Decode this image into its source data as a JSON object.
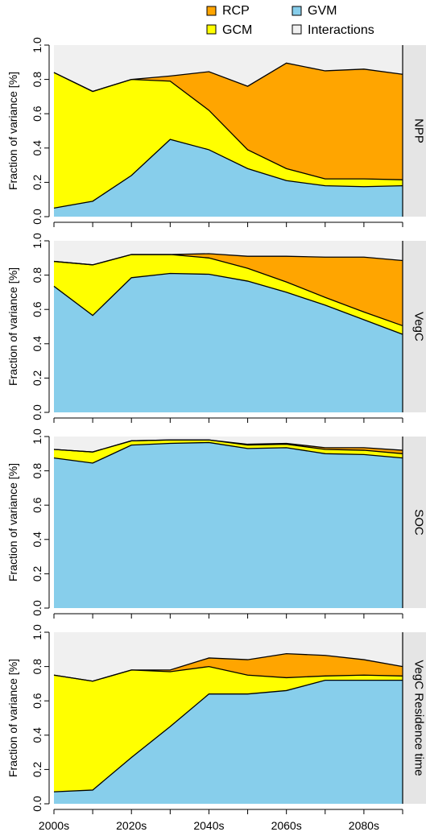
{
  "legend": {
    "items": [
      {
        "label": "RCP",
        "color": "#ffa500"
      },
      {
        "label": "GVM",
        "color": "#87ceeb"
      },
      {
        "label": "GCM",
        "color": "#ffff00"
      },
      {
        "label": "Interactions",
        "color": "#f0f0f0"
      }
    ]
  },
  "x_tick_labels": [
    "2000s",
    "2020s",
    "2040s",
    "2060s",
    "2080s"
  ],
  "y_tick_labels": [
    "0.0",
    "0.2",
    "0.4",
    "0.6",
    "0.8",
    "1.0"
  ],
  "colors": {
    "RCP": "#ffa500",
    "GVM": "#87ceeb",
    "GCM": "#ffff00",
    "Interactions": "#f0f0f0",
    "strip": "#e5e5e5"
  },
  "chart_data": [
    {
      "type": "area",
      "panel_label": "NPP",
      "ylabel": "Fraction of variance [%]",
      "x": [
        "2000s",
        "2010s",
        "2020s",
        "2030s",
        "2040s",
        "2050s",
        "2060s",
        "2070s",
        "2080s",
        "2090s"
      ],
      "ylim": [
        0,
        1
      ],
      "stacked_boundaries": {
        "GVM": [
          0.05,
          0.09,
          0.24,
          0.45,
          0.39,
          0.28,
          0.21,
          0.18,
          0.175,
          0.18
        ],
        "GVM+GCM": [
          0.84,
          0.73,
          0.8,
          0.79,
          0.62,
          0.39,
          0.28,
          0.22,
          0.22,
          0.215
        ],
        "GVM+GCM+RCP": [
          0.84,
          0.73,
          0.8,
          0.82,
          0.845,
          0.76,
          0.895,
          0.85,
          0.86,
          0.83
        ]
      },
      "series": [
        {
          "name": "GVM",
          "values": [
            0.05,
            0.09,
            0.24,
            0.45,
            0.39,
            0.28,
            0.21,
            0.18,
            0.175,
            0.18
          ]
        },
        {
          "name": "GCM",
          "values": [
            0.79,
            0.64,
            0.56,
            0.34,
            0.23,
            0.11,
            0.07,
            0.04,
            0.045,
            0.035
          ]
        },
        {
          "name": "RCP",
          "values": [
            0.0,
            0.0,
            0.0,
            0.03,
            0.225,
            0.37,
            0.615,
            0.63,
            0.64,
            0.615
          ]
        },
        {
          "name": "Interactions",
          "values": [
            0.16,
            0.27,
            0.2,
            0.18,
            0.155,
            0.24,
            0.105,
            0.15,
            0.14,
            0.17
          ]
        }
      ]
    },
    {
      "type": "area",
      "panel_label": "VegC",
      "ylabel": "Fraction of variance [%]",
      "x": [
        "2000s",
        "2010s",
        "2020s",
        "2030s",
        "2040s",
        "2050s",
        "2060s",
        "2070s",
        "2080s",
        "2090s"
      ],
      "ylim": [
        0,
        1
      ],
      "stacked_boundaries": {
        "GVM": [
          0.735,
          0.565,
          0.785,
          0.81,
          0.805,
          0.765,
          0.7,
          0.625,
          0.54,
          0.455
        ],
        "GVM+GCM": [
          0.88,
          0.86,
          0.92,
          0.92,
          0.9,
          0.84,
          0.76,
          0.67,
          0.585,
          0.505
        ],
        "GVM+GCM+RCP": [
          0.88,
          0.86,
          0.92,
          0.92,
          0.925,
          0.91,
          0.91,
          0.905,
          0.905,
          0.885
        ]
      },
      "series": [
        {
          "name": "GVM",
          "values": [
            0.735,
            0.565,
            0.785,
            0.81,
            0.805,
            0.765,
            0.7,
            0.625,
            0.54,
            0.455
          ]
        },
        {
          "name": "GCM",
          "values": [
            0.145,
            0.295,
            0.135,
            0.11,
            0.095,
            0.075,
            0.06,
            0.045,
            0.045,
            0.05
          ]
        },
        {
          "name": "RCP",
          "values": [
            0.0,
            0.0,
            0.0,
            0.0,
            0.025,
            0.07,
            0.15,
            0.235,
            0.32,
            0.38
          ]
        },
        {
          "name": "Interactions",
          "values": [
            0.12,
            0.14,
            0.08,
            0.08,
            0.075,
            0.09,
            0.09,
            0.095,
            0.095,
            0.115
          ]
        }
      ]
    },
    {
      "type": "area",
      "panel_label": "SOC",
      "ylabel": "Fraction of variance [%]",
      "x": [
        "2000s",
        "2010s",
        "2020s",
        "2030s",
        "2040s",
        "2050s",
        "2060s",
        "2070s",
        "2080s",
        "2090s"
      ],
      "ylim": [
        0,
        1
      ],
      "stacked_boundaries": {
        "GVM": [
          0.875,
          0.845,
          0.95,
          0.96,
          0.965,
          0.93,
          0.935,
          0.9,
          0.895,
          0.875
        ],
        "GVM+GCM": [
          0.925,
          0.91,
          0.975,
          0.98,
          0.98,
          0.95,
          0.955,
          0.925,
          0.92,
          0.9
        ],
        "GVM+GCM+RCP": [
          0.925,
          0.91,
          0.975,
          0.98,
          0.98,
          0.955,
          0.96,
          0.935,
          0.935,
          0.92
        ]
      },
      "series": [
        {
          "name": "GVM",
          "values": [
            0.875,
            0.845,
            0.95,
            0.96,
            0.965,
            0.93,
            0.935,
            0.9,
            0.895,
            0.875
          ]
        },
        {
          "name": "GCM",
          "values": [
            0.05,
            0.065,
            0.025,
            0.02,
            0.015,
            0.02,
            0.02,
            0.025,
            0.025,
            0.025
          ]
        },
        {
          "name": "RCP",
          "values": [
            0.0,
            0.0,
            0.0,
            0.0,
            0.0,
            0.005,
            0.005,
            0.01,
            0.015,
            0.02
          ]
        },
        {
          "name": "Interactions",
          "values": [
            0.075,
            0.09,
            0.025,
            0.02,
            0.02,
            0.045,
            0.04,
            0.065,
            0.065,
            0.08
          ]
        }
      ]
    },
    {
      "type": "area",
      "panel_label": "VegC Residence time",
      "ylabel": "Fraction of variance [%]",
      "x": [
        "2000s",
        "2010s",
        "2020s",
        "2030s",
        "2040s",
        "2050s",
        "2060s",
        "2070s",
        "2080s",
        "2090s"
      ],
      "ylim": [
        0,
        1
      ],
      "stacked_boundaries": {
        "GVM": [
          0.07,
          0.08,
          0.27,
          0.45,
          0.64,
          0.64,
          0.66,
          0.72,
          0.72,
          0.72
        ],
        "GVM+GCM": [
          0.75,
          0.715,
          0.78,
          0.77,
          0.8,
          0.75,
          0.735,
          0.745,
          0.75,
          0.745
        ],
        "GVM+GCM+RCP": [
          0.75,
          0.715,
          0.78,
          0.78,
          0.85,
          0.84,
          0.875,
          0.865,
          0.84,
          0.8
        ]
      },
      "series": [
        {
          "name": "GVM",
          "values": [
            0.07,
            0.08,
            0.27,
            0.45,
            0.64,
            0.64,
            0.66,
            0.72,
            0.72,
            0.72
          ]
        },
        {
          "name": "GCM",
          "values": [
            0.68,
            0.635,
            0.51,
            0.32,
            0.16,
            0.11,
            0.075,
            0.025,
            0.03,
            0.025
          ]
        },
        {
          "name": "RCP",
          "values": [
            0.0,
            0.0,
            0.0,
            0.01,
            0.05,
            0.09,
            0.14,
            0.12,
            0.09,
            0.055
          ]
        },
        {
          "name": "Interactions",
          "values": [
            0.25,
            0.285,
            0.22,
            0.22,
            0.15,
            0.16,
            0.125,
            0.135,
            0.16,
            0.2
          ]
        }
      ]
    }
  ]
}
